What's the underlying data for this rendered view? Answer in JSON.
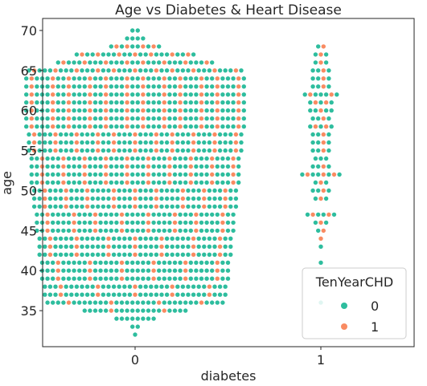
{
  "chart_data": {
    "type": "scatter",
    "subtype": "swarm",
    "title": "Age vs Diabetes & Heart Disease",
    "xlabel": "diabetes",
    "ylabel": "age",
    "categories": [
      "0",
      "1"
    ],
    "ylim": [
      30.5,
      71.5
    ],
    "yticks": [
      35,
      40,
      45,
      50,
      55,
      60,
      65,
      70
    ],
    "grid": false,
    "legend": {
      "title": "TenYearCHD",
      "placement": "bottom-right",
      "entries": [
        {
          "label": "0",
          "color": "#2ebd9e"
        },
        {
          "label": "1",
          "color": "#f98b62"
        }
      ]
    },
    "series": [
      {
        "name": "0",
        "color": "#2ebd9e",
        "counts_by_category": {
          "0": {
            "32": 1,
            "33": 2,
            "34": 8,
            "35": 18,
            "36": 30,
            "37": 30,
            "38": 30,
            "39": 30,
            "40": 30,
            "41": 30,
            "42": 30,
            "43": 30,
            "44": 30,
            "45": 30,
            "46": 30,
            "47": 30,
            "48": 30,
            "49": 30,
            "50": 30,
            "51": 30,
            "52": 30,
            "53": 30,
            "54": 30,
            "55": 30,
            "56": 30,
            "57": 30,
            "58": 30,
            "59": 30,
            "60": 30,
            "61": 30,
            "62": 30,
            "63": 30,
            "64": 30,
            "65": 30,
            "66": 22,
            "67": 16,
            "68": 6,
            "69": 4,
            "70": 2
          },
          "1": {
            "36": 1,
            "41": 1,
            "43": 1,
            "45": 1,
            "46": 2,
            "47": 4,
            "49": 2,
            "50": 3,
            "51": 2,
            "52": 5,
            "53": 3,
            "54": 3,
            "55": 3,
            "56": 3,
            "57": 3,
            "58": 3,
            "59": 3,
            "60": 4,
            "61": 3,
            "62": 5,
            "63": 3,
            "64": 3,
            "65": 3,
            "66": 2,
            "67": 2,
            "68": 1
          }
        }
      },
      {
        "name": "1",
        "color": "#f98b62",
        "counts_by_category": {
          "0": {
            "35": 2,
            "36": 4,
            "37": 5,
            "38": 5,
            "39": 6,
            "40": 6,
            "41": 6,
            "42": 7,
            "43": 7,
            "44": 7,
            "45": 8,
            "46": 8,
            "47": 8,
            "48": 9,
            "49": 9,
            "50": 9,
            "51": 10,
            "52": 10,
            "53": 10,
            "54": 10,
            "55": 11,
            "56": 11,
            "57": 11,
            "58": 12,
            "59": 12,
            "60": 12,
            "61": 12,
            "62": 12,
            "63": 12,
            "64": 12,
            "65": 11,
            "66": 8,
            "67": 7,
            "68": 4
          },
          "1": {
            "44": 1,
            "45": 1,
            "46": 1,
            "47": 2,
            "49": 1,
            "50": 1,
            "51": 1,
            "52": 3,
            "53": 1,
            "55": 1,
            "56": 1,
            "57": 1,
            "58": 2,
            "59": 1,
            "60": 1,
            "61": 2,
            "62": 2,
            "63": 1,
            "64": 1,
            "65": 1,
            "66": 1,
            "67": 1,
            "68": 1
          }
        }
      }
    ]
  }
}
